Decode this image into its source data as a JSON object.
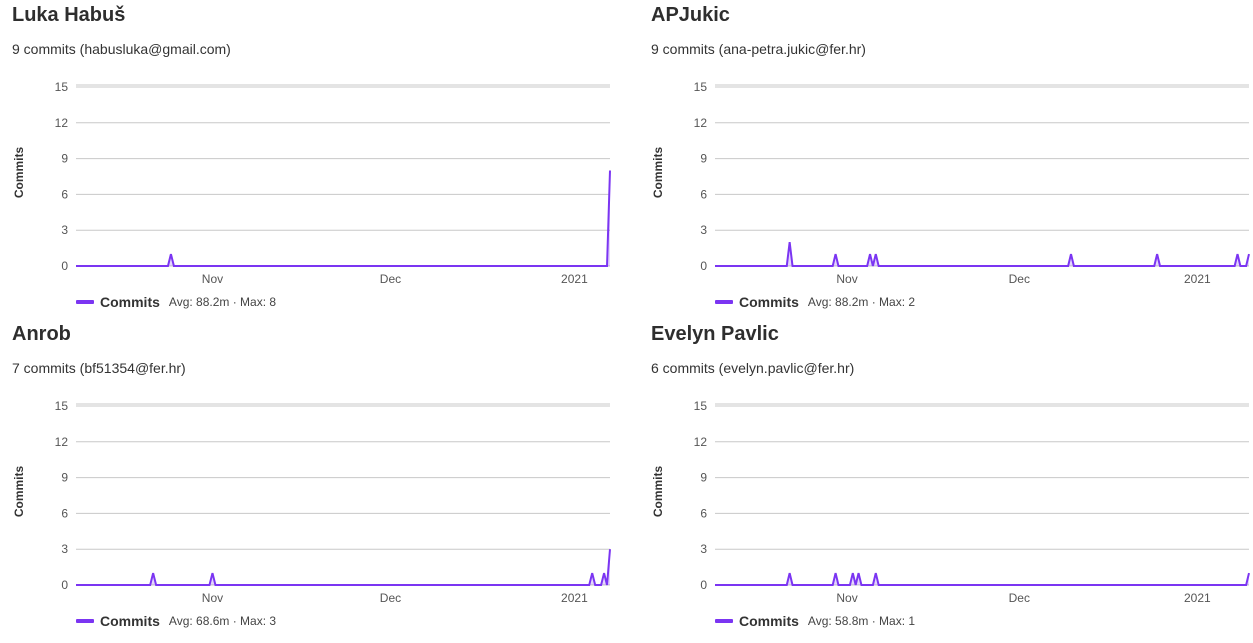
{
  "colors": {
    "series": "#7b35f2",
    "fill": "rgba(123,53,242,0.20)",
    "grid": "#c8c8c8",
    "tick": "#555555"
  },
  "cards": [
    {
      "name": "Luka Habuš",
      "summary": "9 commits (habusluka@gmail.com)",
      "legend": {
        "label": "Commits",
        "stats": "Avg: 88.2m · Max: 8"
      }
    },
    {
      "name": "APJukic",
      "summary": "9 commits (ana-petra.jukic@fer.hr)",
      "legend": {
        "label": "Commits",
        "stats": "Avg: 88.2m · Max: 2"
      }
    },
    {
      "name": "Anrob",
      "summary": "7 commits (bf51354@fer.hr)",
      "legend": {
        "label": "Commits",
        "stats": "Avg: 68.6m · Max: 3"
      }
    },
    {
      "name": "Evelyn Pavlic",
      "summary": "6 commits (evelyn.pavlic@fer.hr)",
      "legend": {
        "label": "Commits",
        "stats": "Avg: 58.8m · Max: 1"
      }
    }
  ],
  "chart_data": [
    {
      "type": "area",
      "title": "",
      "xlabel": "",
      "ylabel": "Commits",
      "x_range": [
        "2020-10-09",
        "2021-01-07"
      ],
      "ylim": [
        0,
        15
      ],
      "yticks": [
        0,
        3,
        6,
        9,
        12,
        15
      ],
      "xticks": [
        {
          "date": "2020-11-01",
          "label": "Nov"
        },
        {
          "date": "2020-12-01",
          "label": "Dec"
        },
        {
          "date": "2021-01-01",
          "label": "2021"
        }
      ],
      "grid": true,
      "legend_position": "bottom-left",
      "series": [
        {
          "name": "Commits",
          "points": [
            {
              "x": "2020-10-25",
              "y": 1
            },
            {
              "x": "2021-01-07",
              "y": 8
            }
          ]
        }
      ]
    },
    {
      "type": "area",
      "title": "",
      "xlabel": "",
      "ylabel": "Commits",
      "x_range": [
        "2020-10-09",
        "2021-01-10"
      ],
      "ylim": [
        0,
        15
      ],
      "yticks": [
        0,
        3,
        6,
        9,
        12,
        15
      ],
      "xticks": [
        {
          "date": "2020-11-01",
          "label": "Nov"
        },
        {
          "date": "2020-12-01",
          "label": "Dec"
        },
        {
          "date": "2021-01-01",
          "label": "2021"
        }
      ],
      "grid": true,
      "legend_position": "bottom-left",
      "series": [
        {
          "name": "Commits",
          "points": [
            {
              "x": "2020-10-22",
              "y": 2
            },
            {
              "x": "2020-10-30",
              "y": 1
            },
            {
              "x": "2020-11-05",
              "y": 1
            },
            {
              "x": "2020-11-06",
              "y": 1
            },
            {
              "x": "2020-12-10",
              "y": 1
            },
            {
              "x": "2020-12-25",
              "y": 1
            },
            {
              "x": "2021-01-08",
              "y": 1
            },
            {
              "x": "2021-01-10",
              "y": 1
            }
          ]
        }
      ]
    },
    {
      "type": "area",
      "title": "",
      "xlabel": "",
      "ylabel": "Commits",
      "x_range": [
        "2020-10-09",
        "2021-01-07"
      ],
      "ylim": [
        0,
        15
      ],
      "yticks": [
        0,
        3,
        6,
        9,
        12,
        15
      ],
      "xticks": [
        {
          "date": "2020-11-01",
          "label": "Nov"
        },
        {
          "date": "2020-12-01",
          "label": "Dec"
        },
        {
          "date": "2021-01-01",
          "label": "2021"
        }
      ],
      "grid": true,
      "legend_position": "bottom-left",
      "series": [
        {
          "name": "Commits",
          "points": [
            {
              "x": "2020-10-22",
              "y": 1
            },
            {
              "x": "2020-11-01",
              "y": 1
            },
            {
              "x": "2021-01-04",
              "y": 1
            },
            {
              "x": "2021-01-06",
              "y": 1
            },
            {
              "x": "2021-01-07",
              "y": 3
            }
          ]
        }
      ]
    },
    {
      "type": "area",
      "title": "",
      "xlabel": "",
      "ylabel": "Commits",
      "x_range": [
        "2020-10-09",
        "2021-01-10"
      ],
      "ylim": [
        0,
        15
      ],
      "yticks": [
        0,
        3,
        6,
        9,
        12,
        15
      ],
      "xticks": [
        {
          "date": "2020-11-01",
          "label": "Nov"
        },
        {
          "date": "2020-12-01",
          "label": "Dec"
        },
        {
          "date": "2021-01-01",
          "label": "2021"
        }
      ],
      "grid": true,
      "legend_position": "bottom-left",
      "series": [
        {
          "name": "Commits",
          "points": [
            {
              "x": "2020-10-22",
              "y": 1
            },
            {
              "x": "2020-10-30",
              "y": 1
            },
            {
              "x": "2020-11-02",
              "y": 1
            },
            {
              "x": "2020-11-03",
              "y": 1
            },
            {
              "x": "2020-11-06",
              "y": 1
            },
            {
              "x": "2021-01-10",
              "y": 1
            }
          ]
        }
      ]
    }
  ]
}
